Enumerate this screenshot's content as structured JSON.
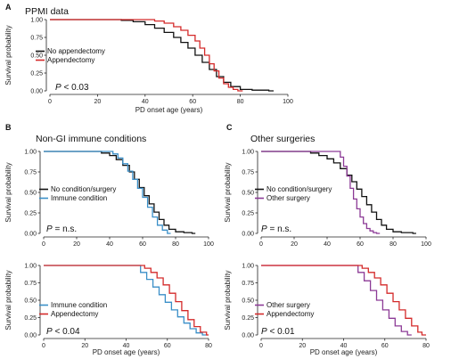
{
  "colors": {
    "black": "#111111",
    "red": "#d42a2a",
    "blue": "#3a8fc8",
    "purple": "#8c3a96"
  },
  "panels": [
    {
      "letter": "A",
      "title": "PPMI data",
      "xlabel": "PD onset age (years)",
      "ylabel": "Survival probability",
      "xticks": [
        "0",
        "20",
        "40",
        "60",
        "80",
        "100"
      ],
      "yticks": [
        "0.00",
        "0.25",
        "0.50",
        "0.75",
        "1.00"
      ],
      "pvalue": {
        "p": "P",
        "rest": " < 0.03"
      },
      "legend": [
        "No appendectomy",
        "Appendectomy"
      ]
    },
    {
      "letter": "B",
      "title": "Non-GI immune conditions",
      "xlabel": "",
      "ylabel": "Survival probability",
      "xticks": [
        "0",
        "20",
        "40",
        "60",
        "80",
        "100"
      ],
      "yticks": [
        "0.00",
        "0.25",
        "0.50",
        "0.75",
        "1.00"
      ],
      "pvalue": {
        "p": "P",
        "rest": " = n.s."
      },
      "legend": [
        "No condition/surgery",
        "Immune condition"
      ]
    },
    {
      "letter": "C",
      "title": "Other surgeries",
      "xlabel": "",
      "ylabel": "Survival probability",
      "xticks": [
        "0",
        "20",
        "40",
        "60",
        "80",
        "100"
      ],
      "yticks": [
        "0.00",
        "0.25",
        "0.50",
        "0.75",
        "1.00"
      ],
      "pvalue": {
        "p": "P",
        "rest": " = n.s."
      },
      "legend": [
        "No condition/surgery",
        "Other surgery"
      ]
    },
    {
      "letter": "",
      "title": "",
      "xlabel": "PD onset age (years)",
      "ylabel": "Survival probability",
      "xticks": [
        "0",
        "20",
        "40",
        "60",
        "80"
      ],
      "yticks": [
        "0.00",
        "0.25",
        "0.50",
        "0.75",
        "1.00"
      ],
      "pvalue": {
        "p": "P",
        "rest": " < 0.04"
      },
      "legend": [
        "Immune condition",
        "Appendectomy"
      ]
    },
    {
      "letter": "",
      "title": "",
      "xlabel": "PD onset age (years)",
      "ylabel": "Survival probability",
      "xticks": [
        "0",
        "20",
        "40",
        "60",
        "80"
      ],
      "yticks": [
        "0.00",
        "0.25",
        "0.50",
        "0.75",
        "1.00"
      ],
      "pvalue": {
        "p": "P",
        "rest": " < 0.01"
      },
      "legend": [
        "Other surgery",
        "Appendectomy"
      ]
    }
  ],
  "chart_data": [
    {
      "type": "line",
      "panel": "A",
      "xlim": [
        0,
        100
      ],
      "ylim": [
        0,
        1
      ],
      "series": [
        {
          "name": "No appendectomy",
          "color": "black",
          "x": [
            0,
            25,
            30,
            35,
            40,
            44,
            48,
            52,
            55,
            58,
            61,
            64,
            67,
            70,
            73,
            76,
            80,
            85,
            92
          ],
          "y": [
            1.0,
            1.0,
            0.99,
            0.97,
            0.93,
            0.88,
            0.82,
            0.75,
            0.68,
            0.6,
            0.5,
            0.4,
            0.3,
            0.2,
            0.12,
            0.06,
            0.02,
            0.01,
            0.0
          ]
        },
        {
          "name": "Appendectomy",
          "color": "red",
          "x": [
            0,
            40,
            44,
            48,
            52,
            55,
            58,
            61,
            63,
            65,
            67,
            69,
            71,
            73,
            75,
            77,
            79
          ],
          "y": [
            1.0,
            1.0,
            0.98,
            0.95,
            0.9,
            0.85,
            0.78,
            0.7,
            0.6,
            0.5,
            0.38,
            0.28,
            0.18,
            0.1,
            0.05,
            0.02,
            0.0
          ]
        }
      ]
    },
    {
      "type": "line",
      "panel": "B-top",
      "xlim": [
        0,
        100
      ],
      "ylim": [
        0,
        1
      ],
      "series": [
        {
          "name": "No condition/surgery",
          "color": "black",
          "x": [
            0,
            30,
            35,
            40,
            44,
            48,
            52,
            55,
            58,
            61,
            64,
            67,
            70,
            73,
            76,
            80,
            85,
            90
          ],
          "y": [
            1.0,
            1.0,
            0.98,
            0.95,
            0.9,
            0.83,
            0.75,
            0.66,
            0.56,
            0.46,
            0.36,
            0.26,
            0.17,
            0.1,
            0.05,
            0.02,
            0.01,
            0.0
          ]
        },
        {
          "name": "Immune condition",
          "color": "blue",
          "x": [
            0,
            35,
            42,
            45,
            48,
            51,
            54,
            57,
            60,
            63,
            66,
            69,
            72,
            75
          ],
          "y": [
            1.0,
            1.0,
            0.97,
            0.92,
            0.85,
            0.76,
            0.66,
            0.55,
            0.44,
            0.32,
            0.2,
            0.1,
            0.04,
            0.0
          ]
        }
      ]
    },
    {
      "type": "line",
      "panel": "C-top",
      "xlim": [
        0,
        100
      ],
      "ylim": [
        0,
        1
      ],
      "series": [
        {
          "name": "No condition/surgery",
          "color": "black",
          "x": [
            0,
            25,
            30,
            35,
            40,
            44,
            48,
            52,
            55,
            58,
            61,
            64,
            67,
            70,
            73,
            76,
            80,
            85,
            92
          ],
          "y": [
            1.0,
            1.0,
            0.98,
            0.95,
            0.91,
            0.86,
            0.79,
            0.71,
            0.63,
            0.54,
            0.45,
            0.35,
            0.26,
            0.17,
            0.1,
            0.05,
            0.02,
            0.01,
            0.0
          ]
        },
        {
          "name": "Other surgery",
          "color": "purple",
          "x": [
            0,
            45,
            48,
            50,
            52,
            54,
            56,
            58,
            60,
            62,
            64,
            66,
            68,
            70
          ],
          "y": [
            1.0,
            1.0,
            0.93,
            0.82,
            0.7,
            0.55,
            0.42,
            0.3,
            0.2,
            0.12,
            0.06,
            0.03,
            0.01,
            0.0
          ]
        }
      ]
    },
    {
      "type": "line",
      "panel": "B-bottom",
      "xlim": [
        0,
        80
      ],
      "ylim": [
        0,
        1
      ],
      "series": [
        {
          "name": "Immune condition",
          "color": "blue",
          "x": [
            0,
            45,
            47,
            50,
            53,
            56,
            59,
            62,
            65,
            68,
            71,
            74,
            77
          ],
          "y": [
            1.0,
            1.0,
            0.9,
            0.8,
            0.69,
            0.58,
            0.47,
            0.36,
            0.26,
            0.17,
            0.09,
            0.03,
            0.0
          ]
        },
        {
          "name": "Appendectomy",
          "color": "red",
          "x": [
            0,
            46,
            49,
            52,
            55,
            58,
            61,
            64,
            67,
            70,
            73,
            76,
            79
          ],
          "y": [
            1.0,
            1.0,
            0.96,
            0.9,
            0.82,
            0.72,
            0.6,
            0.48,
            0.35,
            0.22,
            0.12,
            0.04,
            0.0
          ]
        }
      ]
    },
    {
      "type": "line",
      "panel": "C-bottom",
      "xlim": [
        0,
        80
      ],
      "ylim": [
        0,
        1
      ],
      "series": [
        {
          "name": "Other surgery",
          "color": "purple",
          "x": [
            0,
            45,
            47,
            50,
            53,
            56,
            59,
            62,
            65,
            68,
            71
          ],
          "y": [
            1.0,
            1.0,
            0.9,
            0.78,
            0.64,
            0.5,
            0.36,
            0.24,
            0.13,
            0.05,
            0.0
          ]
        },
        {
          "name": "Appendectomy",
          "color": "red",
          "x": [
            0,
            46,
            49,
            52,
            55,
            58,
            61,
            64,
            67,
            70,
            73,
            76,
            78
          ],
          "y": [
            1.0,
            1.0,
            0.96,
            0.9,
            0.82,
            0.72,
            0.6,
            0.48,
            0.36,
            0.24,
            0.13,
            0.04,
            0.0
          ]
        }
      ]
    }
  ]
}
